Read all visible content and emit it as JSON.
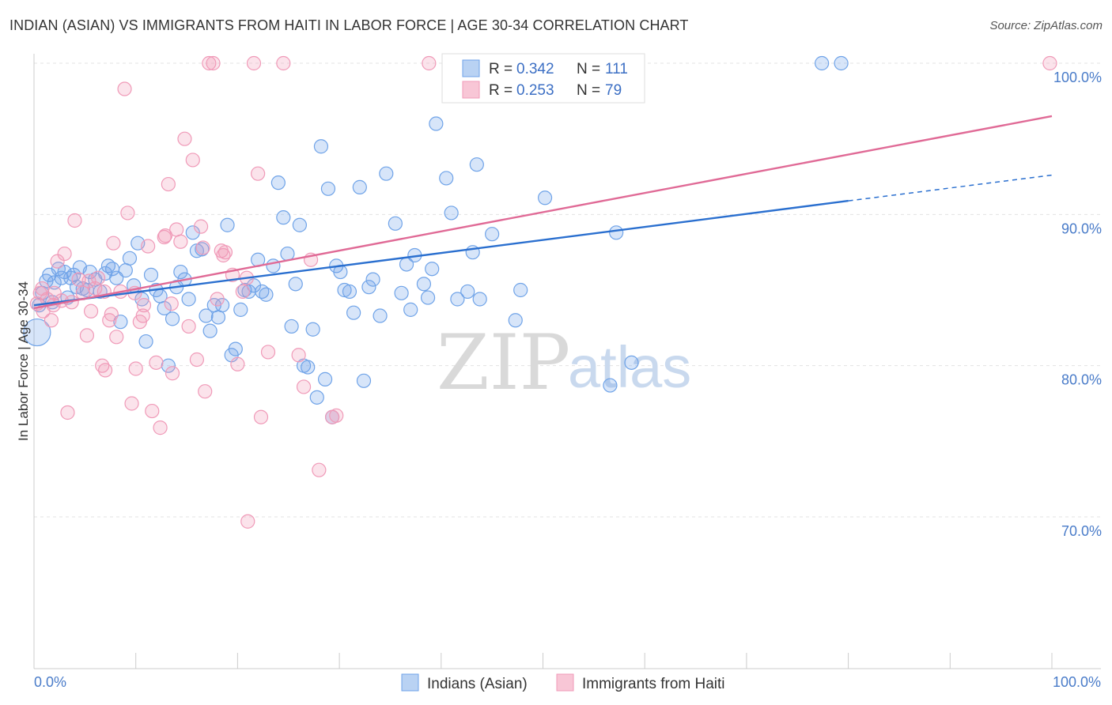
{
  "title": "INDIAN (ASIAN) VS IMMIGRANTS FROM HAITI IN LABOR FORCE | AGE 30-34 CORRELATION CHART",
  "source": "Source: ZipAtlas.com",
  "watermark": {
    "zip": "ZIP",
    "atlas": "atlas"
  },
  "chart_data": {
    "type": "scatter",
    "title": "INDIAN (ASIAN) VS IMMIGRANTS FROM HAITI IN LABOR FORCE | AGE 30-34 CORRELATION CHART",
    "xlabel": "",
    "ylabel": "In Labor Force | Age 30-34",
    "xlim": [
      0,
      100
    ],
    "ylim": [
      62,
      101
    ],
    "x_tick_labels": [
      "0.0%",
      "100.0%"
    ],
    "y_ticks": [
      {
        "value": 100,
        "label": "100.0%"
      },
      {
        "value": 90,
        "label": "90.0%"
      },
      {
        "value": 80,
        "label": "80.0%"
      },
      {
        "value": 70,
        "label": "70.0%"
      }
    ],
    "grid": true,
    "legend_position": "top-center",
    "legend": [
      {
        "r_label": "R = ",
        "r_value": "0.342",
        "n_label": "N = ",
        "n_value": "111"
      },
      {
        "r_label": "R = ",
        "r_value": "0.253",
        "n_label": "N = ",
        "n_value": "79"
      }
    ],
    "series": [
      {
        "name": "Indians (Asian)",
        "color": "#6fa3e8",
        "line_color": "#2a6fcf",
        "trend": {
          "x0": 0,
          "y0": 84.0,
          "x1": 80,
          "y1": 90.9,
          "dash_to_x": 100,
          "dash_to_y": 92.6
        },
        "points": [
          [
            0.3,
            82.2
          ],
          [
            0.5,
            84.0
          ],
          [
            0.8,
            84.8
          ],
          [
            1.2,
            85.6
          ],
          [
            1.5,
            86.0
          ],
          [
            1.8,
            84.2
          ],
          [
            2.0,
            85.5
          ],
          [
            2.4,
            86.4
          ],
          [
            2.7,
            85.8
          ],
          [
            3.0,
            86.2
          ],
          [
            3.3,
            84.5
          ],
          [
            3.6,
            85.8
          ],
          [
            3.9,
            86.0
          ],
          [
            4.2,
            85.2
          ],
          [
            4.5,
            86.5
          ],
          [
            4.8,
            85.1
          ],
          [
            5.2,
            85.0
          ],
          [
            5.5,
            86.2
          ],
          [
            6.0,
            85.7
          ],
          [
            6.5,
            84.9
          ],
          [
            7.0,
            86.1
          ],
          [
            7.3,
            86.6
          ],
          [
            7.7,
            86.4
          ],
          [
            8.1,
            85.8
          ],
          [
            8.5,
            82.9
          ],
          [
            9.0,
            86.3
          ],
          [
            9.4,
            87.1
          ],
          [
            9.8,
            85.3
          ],
          [
            10.2,
            88.1
          ],
          [
            10.6,
            84.4
          ],
          [
            11.0,
            81.6
          ],
          [
            11.5,
            86.0
          ],
          [
            12.0,
            85.0
          ],
          [
            12.4,
            84.6
          ],
          [
            12.8,
            83.8
          ],
          [
            13.2,
            80.0
          ],
          [
            13.6,
            83.1
          ],
          [
            14.0,
            85.2
          ],
          [
            14.4,
            86.2
          ],
          [
            14.8,
            85.7
          ],
          [
            15.2,
            84.4
          ],
          [
            15.6,
            88.8
          ],
          [
            16.0,
            87.6
          ],
          [
            16.5,
            87.7
          ],
          [
            16.9,
            83.3
          ],
          [
            17.3,
            82.3
          ],
          [
            17.7,
            84.0
          ],
          [
            18.1,
            83.2
          ],
          [
            18.5,
            84.0
          ],
          [
            19.0,
            89.3
          ],
          [
            19.4,
            80.7
          ],
          [
            19.8,
            81.1
          ],
          [
            20.3,
            83.7
          ],
          [
            20.7,
            85.0
          ],
          [
            21.1,
            84.9
          ],
          [
            21.6,
            85.3
          ],
          [
            22.0,
            87.0
          ],
          [
            22.4,
            84.9
          ],
          [
            22.8,
            84.7
          ],
          [
            23.5,
            86.6
          ],
          [
            24.0,
            92.1
          ],
          [
            24.5,
            89.8
          ],
          [
            24.9,
            87.4
          ],
          [
            25.3,
            82.6
          ],
          [
            25.7,
            85.4
          ],
          [
            26.1,
            89.3
          ],
          [
            26.5,
            80.0
          ],
          [
            26.9,
            79.9
          ],
          [
            27.4,
            82.4
          ],
          [
            27.8,
            77.9
          ],
          [
            28.2,
            94.5
          ],
          [
            28.6,
            79.1
          ],
          [
            28.9,
            91.7
          ],
          [
            29.3,
            76.6
          ],
          [
            29.7,
            86.6
          ],
          [
            30.1,
            86.2
          ],
          [
            30.5,
            85.0
          ],
          [
            31.0,
            84.9
          ],
          [
            31.4,
            83.5
          ],
          [
            32.0,
            91.8
          ],
          [
            32.4,
            79.0
          ],
          [
            32.9,
            85.2
          ],
          [
            33.3,
            85.7
          ],
          [
            34.0,
            83.3
          ],
          [
            34.6,
            92.7
          ],
          [
            35.5,
            89.4
          ],
          [
            36.1,
            84.8
          ],
          [
            36.6,
            86.7
          ],
          [
            37.0,
            83.7
          ],
          [
            37.4,
            87.3
          ],
          [
            38.3,
            85.4
          ],
          [
            38.7,
            84.5
          ],
          [
            39.1,
            86.4
          ],
          [
            39.5,
            96.0
          ],
          [
            40.5,
            92.4
          ],
          [
            41.0,
            90.1
          ],
          [
            41.6,
            84.4
          ],
          [
            42.6,
            84.9
          ],
          [
            43.1,
            87.5
          ],
          [
            43.5,
            93.3
          ],
          [
            43.8,
            84.4
          ],
          [
            45.0,
            88.7
          ],
          [
            47.3,
            83.0
          ],
          [
            47.8,
            85.0
          ],
          [
            49.6,
            100.0
          ],
          [
            50.2,
            91.1
          ],
          [
            56.6,
            78.7
          ],
          [
            57.2,
            88.8
          ],
          [
            58.7,
            80.2
          ],
          [
            77.4,
            100.0
          ],
          [
            79.3,
            100.0
          ]
        ]
      },
      {
        "name": "Immigrants from Haiti",
        "color": "#f09ab8",
        "line_color": "#e06a96",
        "trend": {
          "x0": 0,
          "y0": 83.8,
          "x1": 100,
          "y1": 96.5
        },
        "points": [
          [
            0.3,
            84.1
          ],
          [
            0.6,
            84.8
          ],
          [
            0.9,
            83.6
          ],
          [
            1.3,
            84.4
          ],
          [
            1.7,
            83.0
          ],
          [
            2.0,
            84.8
          ],
          [
            2.3,
            86.9
          ],
          [
            2.7,
            84.3
          ],
          [
            3.0,
            87.4
          ],
          [
            3.3,
            76.9
          ],
          [
            3.7,
            84.2
          ],
          [
            4.0,
            89.6
          ],
          [
            4.4,
            85.7
          ],
          [
            4.8,
            84.8
          ],
          [
            5.2,
            82.0
          ],
          [
            5.6,
            83.6
          ],
          [
            6.0,
            85.1
          ],
          [
            6.3,
            85.8
          ],
          [
            6.7,
            80.0
          ],
          [
            7.0,
            79.7
          ],
          [
            7.4,
            83.0
          ],
          [
            7.8,
            88.1
          ],
          [
            8.1,
            81.9
          ],
          [
            8.5,
            84.9
          ],
          [
            8.9,
            98.3
          ],
          [
            9.2,
            90.1
          ],
          [
            9.6,
            77.5
          ],
          [
            10.0,
            79.8
          ],
          [
            10.4,
            82.9
          ],
          [
            10.8,
            84.0
          ],
          [
            11.2,
            87.9
          ],
          [
            11.6,
            77.0
          ],
          [
            12.0,
            80.2
          ],
          [
            12.4,
            75.9
          ],
          [
            12.8,
            88.5
          ],
          [
            13.2,
            92.0
          ],
          [
            13.6,
            79.5
          ],
          [
            14.0,
            89.0
          ],
          [
            14.4,
            88.2
          ],
          [
            14.8,
            95.0
          ],
          [
            15.2,
            82.6
          ],
          [
            15.6,
            93.6
          ],
          [
            16.0,
            80.4
          ],
          [
            16.4,
            89.2
          ],
          [
            16.8,
            78.3
          ],
          [
            17.2,
            100.0
          ],
          [
            17.6,
            100.0
          ],
          [
            18.0,
            84.4
          ],
          [
            18.4,
            87.6
          ],
          [
            18.8,
            87.5
          ],
          [
            19.5,
            86.0
          ],
          [
            20.0,
            80.1
          ],
          [
            20.5,
            84.9
          ],
          [
            21.0,
            69.7
          ],
          [
            21.6,
            100.0
          ],
          [
            22.0,
            92.7
          ],
          [
            22.3,
            76.6
          ],
          [
            23.0,
            80.9
          ],
          [
            24.5,
            100.0
          ],
          [
            26.0,
            80.7
          ],
          [
            26.5,
            78.6
          ],
          [
            27.2,
            87.0
          ],
          [
            28.0,
            73.1
          ],
          [
            29.3,
            76.6
          ],
          [
            29.7,
            76.7
          ],
          [
            38.8,
            100.0
          ],
          [
            99.8,
            100.0
          ],
          [
            0.8,
            85.1
          ],
          [
            1.9,
            84.0
          ],
          [
            5.4,
            85.6
          ],
          [
            6.9,
            84.9
          ],
          [
            7.6,
            83.4
          ],
          [
            9.9,
            84.8
          ],
          [
            10.7,
            83.3
          ],
          [
            12.9,
            88.6
          ],
          [
            13.5,
            84.1
          ],
          [
            16.6,
            87.8
          ],
          [
            18.6,
            87.3
          ],
          [
            20.9,
            85.8
          ]
        ]
      }
    ]
  },
  "bottom_legend": [
    {
      "label": "Indians (Asian)"
    },
    {
      "label": "Immigrants from Haiti"
    }
  ]
}
